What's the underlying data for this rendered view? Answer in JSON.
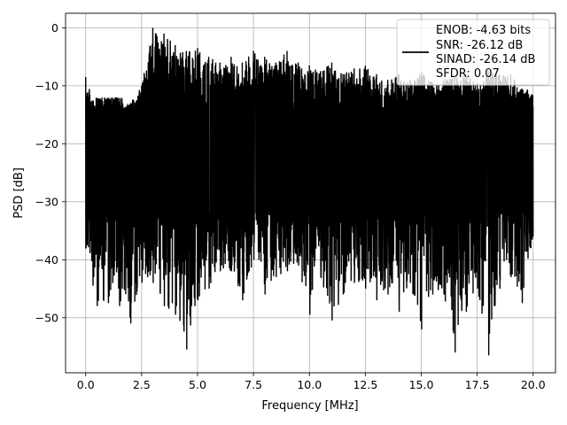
{
  "chart_data": {
    "type": "line",
    "xlabel": "Frequency [MHz]",
    "ylabel": "PSD [dB]",
    "xlim": [
      -0.9,
      21.0
    ],
    "ylim": [
      -59.5,
      2.5
    ],
    "xticks": [
      0.0,
      2.5,
      5.0,
      7.5,
      10.0,
      12.5,
      15.0,
      17.5,
      20.0
    ],
    "xtick_labels": [
      "0.0",
      "2.5",
      "5.0",
      "7.5",
      "10.0",
      "12.5",
      "15.0",
      "17.5",
      "20.0"
    ],
    "yticks": [
      0,
      -10,
      -20,
      -30,
      -40,
      -50
    ],
    "ytick_labels": [
      "0",
      "−10",
      "−20",
      "−30",
      "−40",
      "−50"
    ],
    "grid": true,
    "legend": {
      "placement": "top-right",
      "entries": [
        "ENOB: -4.63 bits",
        "SNR: -26.12 dB",
        "SINAD: -26.14 dB",
        "SFDR: 0.07"
      ]
    },
    "series": [
      {
        "color": "#000000",
        "x_range": [
          0.0,
          20.0
        ],
        "envelope_x": [
          0.0,
          0.5,
          1.0,
          1.5,
          2.0,
          2.5,
          3.0,
          3.5,
          4.0,
          4.5,
          5.0,
          5.5,
          6.0,
          6.5,
          7.0,
          7.5,
          8.0,
          8.5,
          9.0,
          9.5,
          10.0,
          10.5,
          11.0,
          11.5,
          12.0,
          12.5,
          13.0,
          13.5,
          14.0,
          14.5,
          15.0,
          15.5,
          16.0,
          16.5,
          17.0,
          17.5,
          18.0,
          18.5,
          19.0,
          19.5,
          20.0
        ],
        "envelope_max": [
          -8.5,
          -14.5,
          -15.0,
          -14.5,
          -13.0,
          -10.0,
          0.0,
          -1.0,
          -3.0,
          -4.0,
          -3.5,
          -5.0,
          -6.0,
          -5.0,
          -6.0,
          -4.0,
          -5.0,
          -6.0,
          -4.0,
          -6.0,
          -6.5,
          -7.5,
          -6.0,
          -8.0,
          -7.0,
          -6.5,
          -8.0,
          -9.0,
          -8.0,
          -9.0,
          -7.5,
          -9.5,
          -9.0,
          -8.5,
          -8.0,
          -9.5,
          -7.5,
          -8.0,
          -8.0,
          -10.5,
          -11.0
        ],
        "envelope_min": [
          -38.0,
          -48.0,
          -47.5,
          -48.0,
          -51.0,
          -44.0,
          -44.0,
          -48.0,
          -49.5,
          -55.5,
          -47.0,
          -45.0,
          -42.0,
          -42.0,
          -47.0,
          -40.0,
          -46.0,
          -43.0,
          -42.0,
          -41.0,
          -49.5,
          -43.0,
          -50.5,
          -46.0,
          -44.0,
          -45.0,
          -47.0,
          -46.0,
          -49.0,
          -44.0,
          -52.0,
          -46.0,
          -46.0,
          -56.0,
          -49.0,
          -45.0,
          -56.5,
          -45.0,
          -43.0,
          -47.5,
          -36.0
        ],
        "typical_band": [
          -32.0,
          -14.0
        ]
      }
    ]
  }
}
